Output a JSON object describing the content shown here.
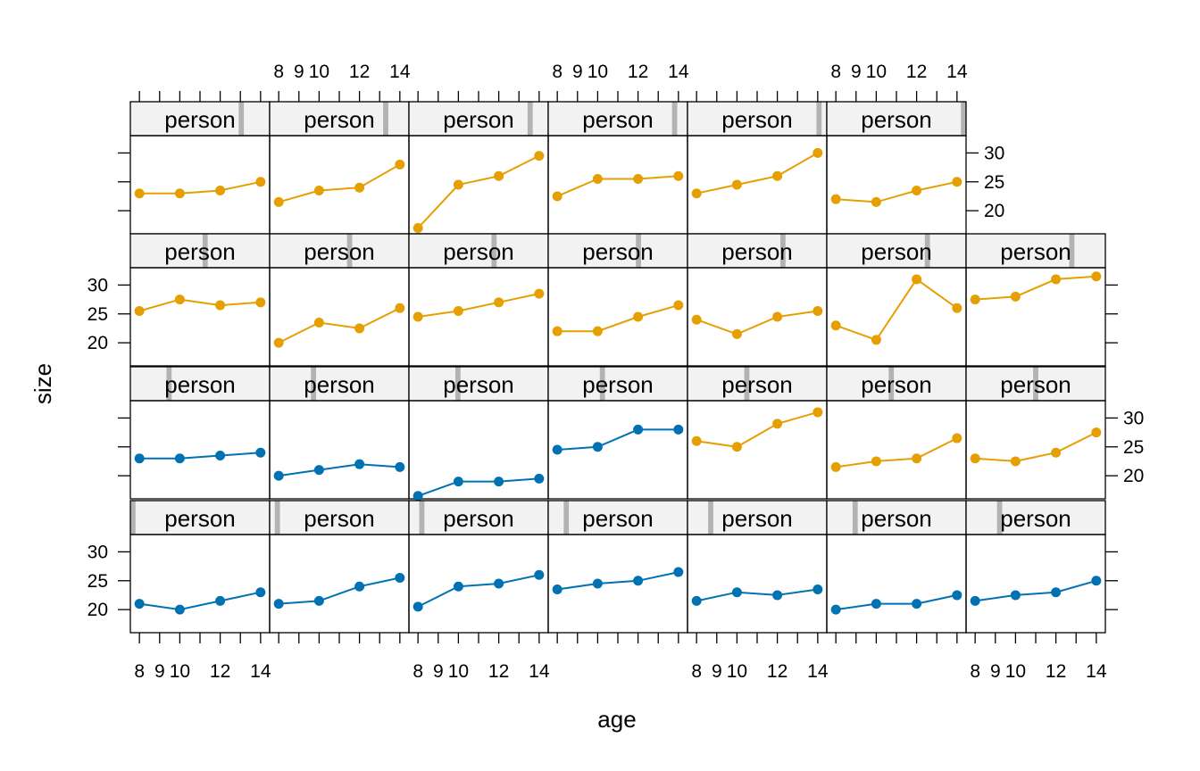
{
  "chart_data": {
    "type": "line",
    "layout": "lattice-trellis",
    "xlabel": "age",
    "ylabel": "size",
    "strip_text": "person",
    "x_ticks": [
      8,
      9,
      10,
      12,
      14
    ],
    "x_tick_labels": [
      "8",
      "9",
      "10",
      "12",
      "14"
    ],
    "x_minor_ticks": [
      8,
      9,
      10,
      11,
      12,
      13,
      14
    ],
    "xlim": [
      7.55,
      14.45
    ],
    "y_ticks": [
      20,
      25,
      30
    ],
    "ylim": [
      16,
      33
    ],
    "colors": {
      "female": "#0072B2",
      "male": "#E69F00",
      "strip_bg": "#F2F2F2",
      "strip_indicator": "#B3B3B3"
    },
    "rows": [
      {
        "row": "bottom",
        "panels": [
          {
            "indicator": 1,
            "color": "female",
            "x": [
              8,
              10,
              12,
              14
            ],
            "y": [
              21,
              20,
              21.5,
              23
            ]
          },
          {
            "indicator": 2,
            "color": "female",
            "x": [
              8,
              10,
              12,
              14
            ],
            "y": [
              21,
              21.5,
              24,
              25.5
            ]
          },
          {
            "indicator": 3,
            "color": "female",
            "x": [
              8,
              10,
              12,
              14
            ],
            "y": [
              20.5,
              24,
              24.5,
              26
            ]
          },
          {
            "indicator": 4,
            "color": "female",
            "x": [
              8,
              10,
              12,
              14
            ],
            "y": [
              23.5,
              24.5,
              25,
              26.5
            ]
          },
          {
            "indicator": 5,
            "color": "female",
            "x": [
              8,
              10,
              12,
              14
            ],
            "y": [
              21.5,
              23,
              22.5,
              23.5
            ]
          },
          {
            "indicator": 6,
            "color": "female",
            "x": [
              8,
              10,
              12,
              14
            ],
            "y": [
              20,
              21,
              21,
              22.5
            ]
          },
          {
            "indicator": 7,
            "color": "female",
            "x": [
              8,
              10,
              12,
              14
            ],
            "y": [
              21.5,
              22.5,
              23,
              25
            ]
          }
        ]
      },
      {
        "row": "third",
        "panels": [
          {
            "indicator": 8,
            "color": "female",
            "x": [
              8,
              10,
              12,
              14
            ],
            "y": [
              23,
              23,
              23.5,
              24
            ]
          },
          {
            "indicator": 9,
            "color": "female",
            "x": [
              8,
              10,
              12,
              14
            ],
            "y": [
              20,
              21,
              22,
              21.5
            ]
          },
          {
            "indicator": 10,
            "color": "female",
            "x": [
              8,
              10,
              12,
              14
            ],
            "y": [
              16.5,
              19,
              19,
              19.5
            ]
          },
          {
            "indicator": 11,
            "color": "female",
            "x": [
              8,
              10,
              12,
              14
            ],
            "y": [
              24.5,
              25,
              28,
              28
            ]
          },
          {
            "indicator": 12,
            "color": "male",
            "x": [
              8,
              10,
              12,
              14
            ],
            "y": [
              26,
              25,
              29,
              31
            ]
          },
          {
            "indicator": 13,
            "color": "male",
            "x": [
              8,
              10,
              12,
              14
            ],
            "y": [
              21.5,
              22.5,
              23,
              26.5
            ]
          },
          {
            "indicator": 14,
            "color": "male",
            "x": [
              8,
              10,
              12,
              14
            ],
            "y": [
              23,
              22.5,
              24,
              27.5
            ]
          }
        ]
      },
      {
        "row": "second",
        "panels": [
          {
            "indicator": 15,
            "color": "male",
            "x": [
              8,
              10,
              12,
              14
            ],
            "y": [
              25.5,
              27.5,
              26.5,
              27
            ]
          },
          {
            "indicator": 16,
            "color": "male",
            "x": [
              8,
              10,
              12,
              14
            ],
            "y": [
              20,
              23.5,
              22.5,
              26
            ]
          },
          {
            "indicator": 17,
            "color": "male",
            "x": [
              8,
              10,
              12,
              14
            ],
            "y": [
              24.5,
              25.5,
              27,
              28.5
            ]
          },
          {
            "indicator": 18,
            "color": "male",
            "x": [
              8,
              10,
              12,
              14
            ],
            "y": [
              22,
              22,
              24.5,
              26.5
            ]
          },
          {
            "indicator": 19,
            "color": "male",
            "x": [
              8,
              10,
              12,
              14
            ],
            "y": [
              24,
              21.5,
              24.5,
              25.5
            ]
          },
          {
            "indicator": 20,
            "color": "male",
            "x": [
              8,
              10,
              12,
              14
            ],
            "y": [
              23,
              20.5,
              31,
              26
            ]
          },
          {
            "indicator": 21,
            "color": "male",
            "x": [
              8,
              10,
              12,
              14
            ],
            "y": [
              27.5,
              28,
              31,
              31.5
            ]
          }
        ]
      },
      {
        "row": "top",
        "panels": [
          {
            "indicator": 22,
            "color": "male",
            "x": [
              8,
              10,
              12,
              14
            ],
            "y": [
              23,
              23,
              23.5,
              25
            ]
          },
          {
            "indicator": 23,
            "color": "male",
            "x": [
              8,
              10,
              12,
              14
            ],
            "y": [
              21.5,
              23.5,
              24,
              28
            ]
          },
          {
            "indicator": 24,
            "color": "male",
            "x": [
              8,
              10,
              12,
              14
            ],
            "y": [
              17,
              24.5,
              26,
              29.5
            ]
          },
          {
            "indicator": 25,
            "color": "male",
            "x": [
              8,
              10,
              12,
              14
            ],
            "y": [
              22.5,
              25.5,
              25.5,
              26
            ]
          },
          {
            "indicator": 26,
            "color": "male",
            "x": [
              8,
              10,
              12,
              14
            ],
            "y": [
              23,
              24.5,
              26,
              30
            ]
          },
          {
            "indicator": 27,
            "color": "male",
            "x": [
              8,
              10,
              12,
              14
            ],
            "y": [
              22,
              21.5,
              23.5,
              25
            ]
          }
        ]
      }
    ],
    "indicator_count": 27
  }
}
